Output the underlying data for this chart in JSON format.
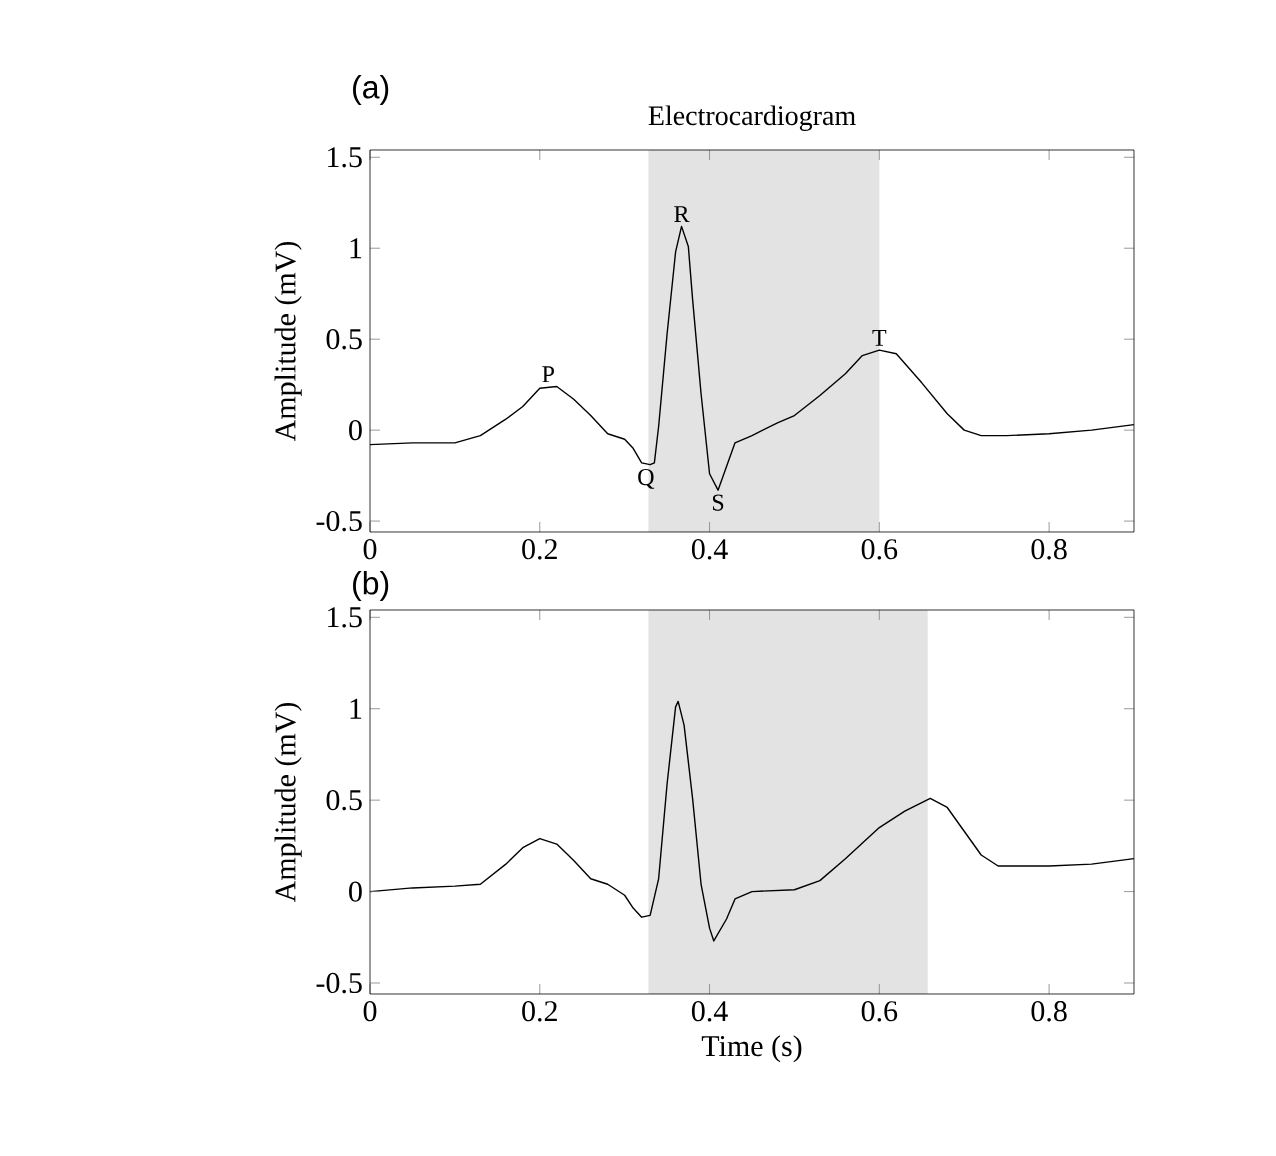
{
  "chart_data": [
    {
      "type": "line",
      "title": "Electrocardiogram",
      "ylabel": "Amplitude (mV)",
      "xlim": [
        0,
        0.9
      ],
      "ylim": [
        -0.56,
        1.54
      ],
      "xticks": [
        0,
        0.2,
        0.4,
        0.6,
        0.8
      ],
      "yticks": [
        -0.5,
        0,
        0.5,
        1,
        1.5
      ],
      "bands": [
        {
          "axis": "x",
          "from": 0.328,
          "to": 0.6,
          "color": "#e3e3e3"
        }
      ],
      "annotations": [
        "(a)",
        {
          "text": "P",
          "x": 0.21,
          "y": 0.24
        },
        {
          "text": "Q",
          "x": 0.325,
          "y": -0.19
        },
        {
          "text": "R",
          "x": 0.367,
          "y": 1.12
        },
        {
          "text": "S",
          "x": 0.41,
          "y": -0.33
        },
        {
          "text": "T",
          "x": 0.6,
          "y": 0.44
        }
      ],
      "x": [
        0,
        0.05,
        0.1,
        0.13,
        0.16,
        0.18,
        0.2,
        0.22,
        0.24,
        0.26,
        0.28,
        0.3,
        0.31,
        0.32,
        0.33,
        0.335,
        0.34,
        0.35,
        0.36,
        0.367,
        0.375,
        0.38,
        0.39,
        0.4,
        0.41,
        0.42,
        0.43,
        0.45,
        0.48,
        0.5,
        0.53,
        0.56,
        0.58,
        0.6,
        0.62,
        0.65,
        0.68,
        0.7,
        0.72,
        0.75,
        0.8,
        0.85,
        0.9
      ],
      "series": [
        {
          "color": "#000000",
          "values": [
            -0.08,
            -0.07,
            -0.07,
            -0.03,
            0.06,
            0.13,
            0.23,
            0.24,
            0.17,
            0.08,
            -0.02,
            -0.05,
            -0.1,
            -0.18,
            -0.19,
            -0.18,
            0.02,
            0.53,
            0.98,
            1.12,
            1.01,
            0.72,
            0.2,
            -0.24,
            -0.33,
            -0.2,
            -0.07,
            -0.03,
            0.04,
            0.08,
            0.19,
            0.31,
            0.41,
            0.44,
            0.42,
            0.26,
            0.09,
            0.0,
            -0.03,
            -0.03,
            -0.02,
            0.0,
            0.03
          ]
        }
      ]
    },
    {
      "type": "line",
      "xlabel": "Time (s)",
      "ylabel": "Amplitude (mV)",
      "xlim": [
        0,
        0.9
      ],
      "ylim": [
        -0.56,
        1.54
      ],
      "xticks": [
        0,
        0.2,
        0.4,
        0.6,
        0.8
      ],
      "yticks": [
        -0.5,
        0,
        0.5,
        1,
        1.5
      ],
      "bands": [
        {
          "axis": "x",
          "from": 0.328,
          "to": 0.657,
          "color": "#e3e3e3"
        }
      ],
      "annotations": [
        "(b)"
      ],
      "x": [
        0,
        0.05,
        0.1,
        0.13,
        0.16,
        0.18,
        0.2,
        0.22,
        0.24,
        0.26,
        0.28,
        0.3,
        0.31,
        0.32,
        0.33,
        0.34,
        0.35,
        0.36,
        0.363,
        0.37,
        0.38,
        0.39,
        0.4,
        0.405,
        0.42,
        0.43,
        0.45,
        0.5,
        0.53,
        0.56,
        0.6,
        0.63,
        0.66,
        0.68,
        0.7,
        0.72,
        0.74,
        0.8,
        0.85,
        0.9
      ],
      "series": [
        {
          "color": "#000000",
          "values": [
            0.0,
            0.02,
            0.03,
            0.04,
            0.15,
            0.24,
            0.29,
            0.26,
            0.17,
            0.07,
            0.04,
            -0.02,
            -0.09,
            -0.14,
            -0.13,
            0.07,
            0.59,
            1.01,
            1.04,
            0.91,
            0.51,
            0.04,
            -0.2,
            -0.27,
            -0.15,
            -0.04,
            0.0,
            0.01,
            0.06,
            0.18,
            0.35,
            0.44,
            0.51,
            0.46,
            0.33,
            0.2,
            0.14,
            0.14,
            0.15,
            0.18
          ]
        }
      ]
    }
  ]
}
